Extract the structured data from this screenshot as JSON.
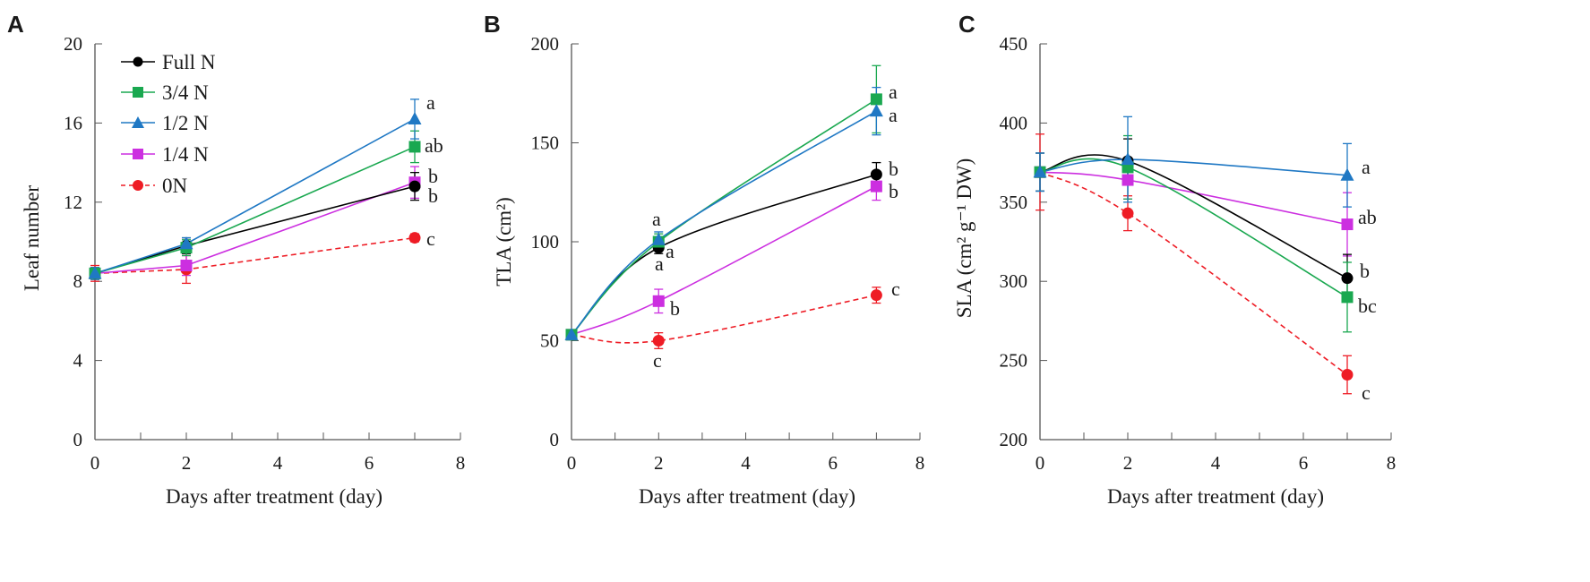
{
  "chart_data": [
    {
      "panel_label": "A",
      "type": "line",
      "xlabel": "Days after treatment (day)",
      "ylabel": "Leaf number",
      "xlim": [
        0,
        8
      ],
      "ylim": [
        0,
        20
      ],
      "xticks": [
        "0",
        "2",
        "4",
        "6",
        "8"
      ],
      "yticks": [
        "0",
        "4",
        "8",
        "12",
        "16",
        "20"
      ],
      "legend": {
        "position": "top-left",
        "entries": [
          {
            "name": "Full N",
            "color": "#000000",
            "marker": "circle",
            "dash": false
          },
          {
            "name": "3/4 N",
            "color": "#1aa850",
            "marker": "square",
            "dash": false
          },
          {
            "name": "1/2 N",
            "color": "#1f78c4",
            "marker": "triangle",
            "dash": false
          },
          {
            "name": "1/4 N",
            "color": "#cc2fe0",
            "marker": "square",
            "dash": false
          },
          {
            "name": "0N",
            "color": "#ee1c25",
            "marker": "circle",
            "dash": true
          }
        ]
      },
      "series": [
        {
          "name": "Full N",
          "x": [
            0,
            2,
            7
          ],
          "y": [
            8.4,
            9.8,
            12.8
          ],
          "err": [
            0.3,
            0.4,
            0.7
          ]
        },
        {
          "name": "3/4 N",
          "x": [
            0,
            2,
            7
          ],
          "y": [
            8.4,
            9.7,
            14.8
          ],
          "err": [
            0.3,
            0.4,
            0.8
          ]
        },
        {
          "name": "1/2 N",
          "x": [
            0,
            2,
            7
          ],
          "y": [
            8.4,
            9.9,
            16.2
          ],
          "err": [
            0.3,
            0.3,
            1.0
          ]
        },
        {
          "name": "1/4 N",
          "x": [
            0,
            2,
            7
          ],
          "y": [
            8.4,
            8.8,
            13.0
          ],
          "err": [
            0.3,
            0.5,
            0.8
          ]
        },
        {
          "name": "0N",
          "x": [
            0,
            2,
            7
          ],
          "y": [
            8.4,
            8.6,
            10.2
          ],
          "err": [
            0.4,
            0.7,
            0.2
          ]
        }
      ],
      "annotations": [
        {
          "text": "a",
          "series": "1/2 N"
        },
        {
          "text": "ab",
          "series": "3/4 N"
        },
        {
          "text": "b",
          "series": "1/4 N"
        },
        {
          "text": "b",
          "series": "Full N"
        },
        {
          "text": "c",
          "series": "0N"
        }
      ]
    },
    {
      "panel_label": "B",
      "type": "line",
      "xlabel": "Days after treatment (day)",
      "ylabel": "TLA (cm²)",
      "xlim": [
        0,
        8
      ],
      "ylim": [
        0,
        200
      ],
      "xticks": [
        "0",
        "2",
        "4",
        "6",
        "8"
      ],
      "yticks": [
        "0",
        "50",
        "100",
        "150",
        "200"
      ],
      "series": [
        {
          "name": "Full N",
          "x": [
            0,
            2,
            7
          ],
          "y": [
            53,
            97,
            134
          ],
          "err": [
            2,
            3,
            6
          ]
        },
        {
          "name": "3/4 N",
          "x": [
            0,
            2,
            7
          ],
          "y": [
            53,
            100,
            172
          ],
          "err": [
            2,
            4,
            17
          ]
        },
        {
          "name": "1/2 N",
          "x": [
            0,
            2,
            7
          ],
          "y": [
            53,
            101,
            166
          ],
          "err": [
            2,
            4,
            12
          ]
        },
        {
          "name": "1/4 N",
          "x": [
            0,
            2,
            7
          ],
          "y": [
            53,
            70,
            128
          ],
          "err": [
            2,
            6,
            7
          ]
        },
        {
          "name": "0N",
          "x": [
            0,
            2,
            7
          ],
          "y": [
            53,
            50,
            73
          ],
          "err": [
            2,
            4,
            4
          ]
        }
      ],
      "annotations": [
        {
          "text": "a",
          "series": "3/4 N"
        },
        {
          "text": "a",
          "series": "1/2 N"
        },
        {
          "text": "b",
          "series": "Full N"
        },
        {
          "text": "b",
          "series": "1/4 N"
        },
        {
          "text": "c",
          "series": "0N"
        },
        {
          "text": "a",
          "series": "3/4 N"
        },
        {
          "text": "a",
          "series": "Full N"
        },
        {
          "text": "a",
          "series": "1/2 N"
        },
        {
          "text": "b",
          "series": "1/4 N"
        },
        {
          "text": "c",
          "series": "0N"
        }
      ]
    },
    {
      "panel_label": "C",
      "type": "line",
      "xlabel": "Days after treatment (day)",
      "ylabel": "SLA (cm² g⁻¹ DW)",
      "xlim": [
        0,
        8
      ],
      "ylim": [
        200,
        450
      ],
      "xticks": [
        "0",
        "2",
        "4",
        "6",
        "8"
      ],
      "yticks": [
        "200",
        "250",
        "300",
        "350",
        "400",
        "450"
      ],
      "series": [
        {
          "name": "Full N",
          "x": [
            0,
            2,
            7
          ],
          "y": [
            369,
            376,
            302
          ],
          "err": [
            12,
            14,
            15
          ]
        },
        {
          "name": "3/4 N",
          "x": [
            0,
            2,
            7
          ],
          "y": [
            369,
            372,
            290
          ],
          "err": [
            12,
            20,
            22
          ]
        },
        {
          "name": "1/2 N",
          "x": [
            0,
            2,
            7
          ],
          "y": [
            369,
            377,
            367
          ],
          "err": [
            12,
            27,
            20
          ]
        },
        {
          "name": "1/4 N",
          "x": [
            0,
            2,
            7
          ],
          "y": [
            369,
            364,
            336
          ],
          "err": [
            12,
            12,
            20
          ]
        },
        {
          "name": "0N",
          "x": [
            0,
            2,
            7
          ],
          "y": [
            369,
            343,
            241
          ],
          "err": [
            24,
            11,
            12
          ]
        }
      ],
      "annotations": [
        {
          "text": "a",
          "series": "1/2 N"
        },
        {
          "text": "ab",
          "series": "1/4 N"
        },
        {
          "text": "b",
          "series": "Full N"
        },
        {
          "text": "bc",
          "series": "3/4 N"
        },
        {
          "text": "c",
          "series": "0N"
        }
      ]
    }
  ]
}
